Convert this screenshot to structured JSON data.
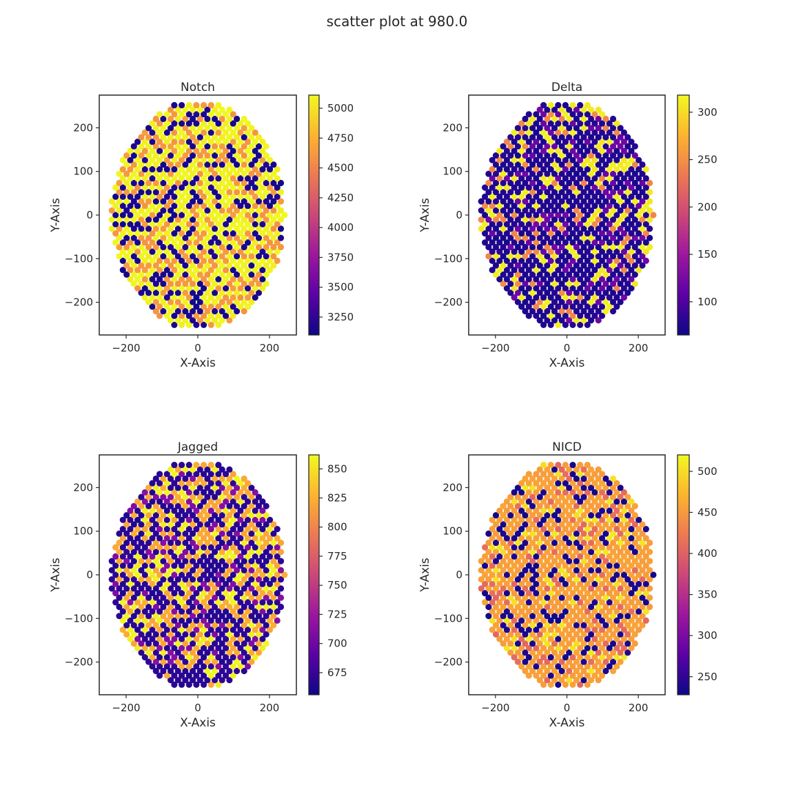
{
  "figure_title": "scatter plot at 980.0",
  "colormap": [
    "#0d0887",
    "#5c01a6",
    "#9c179e",
    "#cc4778",
    "#ed7953",
    "#fdb42f",
    "#f0f921"
  ],
  "colormap_name": "plasma",
  "chart_data": [
    {
      "type": "scatter",
      "title": "Notch",
      "xlabel": "X-Axis",
      "ylabel": "Y-Axis",
      "xlim": [
        -275,
        275
      ],
      "ylim": [
        -275,
        275
      ],
      "xticks": [
        -200,
        0,
        200
      ],
      "yticks": [
        -200,
        -100,
        0,
        100,
        200
      ],
      "xtick_labels": [
        "−200",
        "0",
        "200"
      ],
      "ytick_labels": [
        "−200",
        "−100",
        "0",
        "100",
        "200"
      ],
      "color_range": [
        3100,
        5110
      ],
      "colorbar_ticks": [
        3250,
        3500,
        3750,
        4000,
        4250,
        4500,
        4750,
        5000
      ],
      "colorbar_labels": [
        "3250",
        "3500",
        "3750",
        "4000",
        "4250",
        "4500",
        "4750",
        "5000"
      ],
      "grid": false,
      "seed": 11,
      "mix": [
        [
          0.3,
          3150
        ],
        [
          0.42,
          5080
        ],
        [
          0.28,
          4620
        ]
      ]
    },
    {
      "type": "scatter",
      "title": "Delta",
      "xlabel": "X-Axis",
      "ylabel": "Y-Axis",
      "xlim": [
        -275,
        275
      ],
      "ylim": [
        -275,
        275
      ],
      "xticks": [
        -200,
        0,
        200
      ],
      "yticks": [
        -200,
        -100,
        0,
        100,
        200
      ],
      "xtick_labels": [
        "−200",
        "0",
        "200"
      ],
      "ytick_labels": [
        "−200",
        "−100",
        "0",
        "100",
        "200"
      ],
      "color_range": [
        65,
        318
      ],
      "colorbar_ticks": [
        100,
        150,
        200,
        250,
        300
      ],
      "colorbar_labels": [
        "100",
        "150",
        "200",
        "250",
        "300"
      ],
      "grid": false,
      "seed": 23,
      "mix": [
        [
          0.62,
          75
        ],
        [
          0.16,
          310
        ],
        [
          0.12,
          118
        ],
        [
          0.1,
          245
        ]
      ]
    },
    {
      "type": "scatter",
      "title": "Jagged",
      "xlabel": "X-Axis",
      "ylabel": "Y-Axis",
      "xlim": [
        -275,
        275
      ],
      "ylim": [
        -275,
        275
      ],
      "xticks": [
        -200,
        0,
        200
      ],
      "yticks": [
        -200,
        -100,
        0,
        100,
        200
      ],
      "xtick_labels": [
        "−200",
        "0",
        "200"
      ],
      "ytick_labels": [
        "−200",
        "−100",
        "0",
        "100",
        "200"
      ],
      "color_range": [
        656,
        862
      ],
      "colorbar_ticks": [
        675,
        700,
        725,
        750,
        775,
        800,
        825,
        850
      ],
      "colorbar_labels": [
        "675",
        "700",
        "725",
        "750",
        "775",
        "800",
        "825",
        "850"
      ],
      "grid": false,
      "seed": 37,
      "mix": [
        [
          0.48,
          668
        ],
        [
          0.26,
          822
        ],
        [
          0.14,
          858
        ],
        [
          0.12,
          712
        ]
      ]
    },
    {
      "type": "scatter",
      "title": "NICD",
      "xlabel": "X-Axis",
      "ylabel": "Y-Axis",
      "xlim": [
        -275,
        275
      ],
      "ylim": [
        -275,
        275
      ],
      "xticks": [
        -200,
        0,
        200
      ],
      "yticks": [
        -200,
        -100,
        0,
        100,
        200
      ],
      "xtick_labels": [
        "−200",
        "0",
        "200"
      ],
      "ytick_labels": [
        "−200",
        "−100",
        "0",
        "100",
        "200"
      ],
      "color_range": [
        228,
        520
      ],
      "colorbar_ticks": [
        250,
        300,
        350,
        400,
        450,
        500
      ],
      "colorbar_labels": [
        "250",
        "300",
        "350",
        "400",
        "450",
        "500"
      ],
      "grid": false,
      "seed": 53,
      "mix": [
        [
          0.58,
          455
        ],
        [
          0.2,
          235
        ],
        [
          0.12,
          410
        ],
        [
          0.1,
          505
        ]
      ]
    }
  ]
}
